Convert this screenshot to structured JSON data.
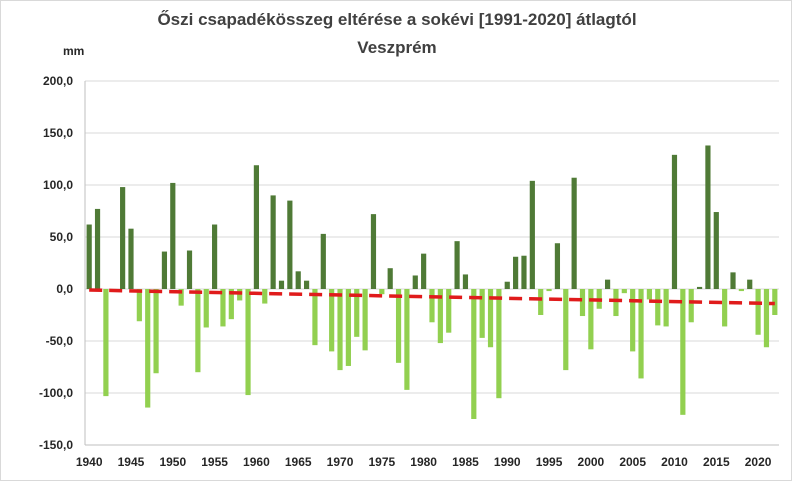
{
  "chart_data": {
    "type": "bar",
    "title": "Őszi csapadékösszeg  eltérése a sokévi [1991-2020] átlagtól",
    "subtitle": "Veszprém",
    "ylabel": "mm",
    "xlabel": "",
    "ylim": [
      -150,
      200
    ],
    "yticks": [
      "200,0",
      "150,0",
      "100,0",
      "50,0",
      "0,0",
      "-50,0",
      "-100,0",
      "-150,0"
    ],
    "ytick_values": [
      200,
      150,
      100,
      50,
      0,
      -50,
      -100,
      -150
    ],
    "xticks": [
      "1940",
      "1945",
      "1950",
      "1955",
      "1960",
      "1965",
      "1970",
      "1975",
      "1980",
      "1985",
      "1990",
      "1995",
      "2000",
      "2005",
      "2010",
      "2015",
      "2020"
    ],
    "years": [
      1940,
      1941,
      1942,
      1943,
      1944,
      1945,
      1946,
      1947,
      1948,
      1949,
      1950,
      1951,
      1952,
      1953,
      1954,
      1955,
      1956,
      1957,
      1958,
      1959,
      1960,
      1961,
      1962,
      1963,
      1964,
      1965,
      1966,
      1967,
      1968,
      1969,
      1970,
      1971,
      1972,
      1973,
      1974,
      1975,
      1976,
      1977,
      1978,
      1979,
      1980,
      1981,
      1982,
      1983,
      1984,
      1985,
      1986,
      1987,
      1988,
      1989,
      1990,
      1991,
      1992,
      1993,
      1994,
      1995,
      1996,
      1997,
      1998,
      1999,
      2000,
      2001,
      2002,
      2003,
      2004,
      2005,
      2006,
      2007,
      2008,
      2009,
      2010,
      2011,
      2012,
      2013,
      2014,
      2015,
      2016,
      2017,
      2018,
      2019,
      2020,
      2021,
      2022
    ],
    "values": [
      62,
      77,
      -103,
      0,
      98,
      58,
      -31,
      -114,
      -81,
      36,
      102,
      -16,
      37,
      -80,
      -37,
      62,
      -36,
      -29,
      -11,
      -102,
      119,
      -14,
      90,
      8,
      85,
      17,
      8,
      -54,
      53,
      -60,
      -78,
      -74,
      -46,
      -59,
      72,
      -5,
      20,
      -71,
      -97,
      13,
      34,
      -32,
      -52,
      -42,
      46,
      14,
      -125,
      -47,
      -56,
      -105,
      7,
      31,
      32,
      104,
      -25,
      -2,
      44,
      -78,
      107,
      -26,
      -58,
      -19,
      9,
      -26,
      -4,
      -60,
      -86,
      -10,
      -35,
      -36,
      129,
      -121,
      -32,
      2,
      138,
      74,
      -36,
      16,
      -2,
      9,
      -44,
      -56,
      -25
    ],
    "trend": {
      "start_year": 1940,
      "end_year": 2022,
      "start_value": -1,
      "end_value": -14
    },
    "colors": {
      "positive": "#4f7a36",
      "negative": "#92d050",
      "trend": "#e01b1b",
      "grid": "#d9d9d9"
    },
    "grid": true,
    "legend": false
  }
}
